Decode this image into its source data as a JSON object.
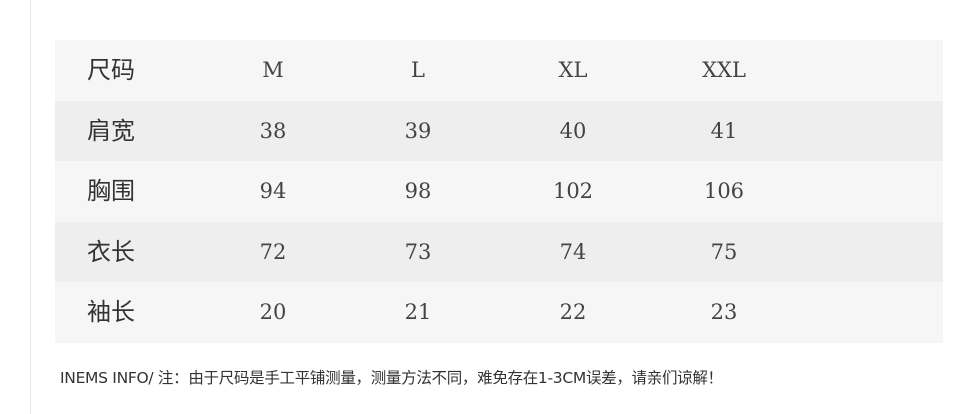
{
  "table": {
    "header": [
      "尺码",
      "M",
      "L",
      "XL",
      "XXL"
    ],
    "rows": [
      [
        "肩宽",
        "38",
        "39",
        "40",
        "41"
      ],
      [
        "胸围",
        "94",
        "98",
        "102",
        "106"
      ],
      [
        "衣长",
        "72",
        "73",
        "74",
        "75"
      ],
      [
        "袖长",
        "20",
        "21",
        "22",
        "23"
      ]
    ]
  },
  "note": "INEMS INFO/  注：由于尺码是手工平铺测量，测量方法不同，难免存在1-3CM误差，请亲们谅解！"
}
